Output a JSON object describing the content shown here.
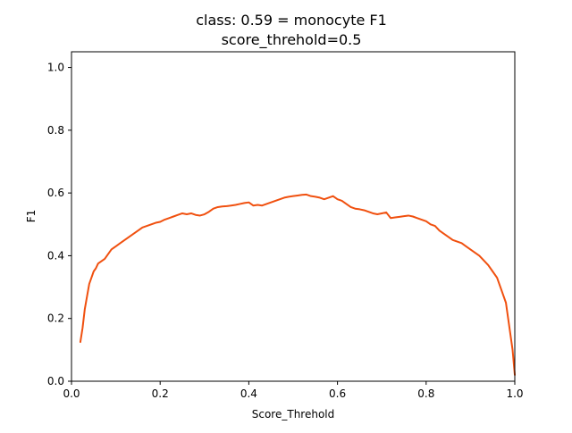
{
  "chart_data": {
    "type": "line",
    "title": "class: 0.59 = monocyte F1",
    "subtitle": "score_threhold=0.5",
    "xlabel": "Score_Threhold",
    "ylabel": "F1",
    "xlim": [
      0.0,
      1.0
    ],
    "ylim": [
      0.0,
      1.05
    ],
    "x_ticks": [
      0.0,
      0.2,
      0.4,
      0.6,
      0.8,
      1.0
    ],
    "x_tick_labels": [
      "0.0",
      "0.2",
      "0.4",
      "0.6",
      "0.8",
      "1.0"
    ],
    "y_ticks": [
      0.0,
      0.2,
      0.4,
      0.6,
      0.8,
      1.0
    ],
    "y_tick_labels": [
      "0.0",
      "0.2",
      "0.4",
      "0.6",
      "0.8",
      "1.0"
    ],
    "grid": false,
    "series": [
      {
        "color": "#f0500f",
        "x": [
          0.02,
          0.025,
          0.03,
          0.035,
          0.04,
          0.045,
          0.05,
          0.055,
          0.06,
          0.065,
          0.07,
          0.075,
          0.08,
          0.085,
          0.09,
          0.1,
          0.11,
          0.12,
          0.13,
          0.14,
          0.15,
          0.16,
          0.17,
          0.18,
          0.19,
          0.2,
          0.21,
          0.22,
          0.23,
          0.24,
          0.25,
          0.26,
          0.27,
          0.28,
          0.29,
          0.3,
          0.31,
          0.32,
          0.33,
          0.34,
          0.35,
          0.36,
          0.37,
          0.38,
          0.39,
          0.4,
          0.41,
          0.42,
          0.43,
          0.44,
          0.45,
          0.46,
          0.47,
          0.48,
          0.49,
          0.5,
          0.51,
          0.52,
          0.53,
          0.54,
          0.55,
          0.56,
          0.57,
          0.58,
          0.59,
          0.6,
          0.61,
          0.62,
          0.63,
          0.64,
          0.65,
          0.66,
          0.67,
          0.68,
          0.69,
          0.7,
          0.71,
          0.72,
          0.73,
          0.74,
          0.75,
          0.76,
          0.77,
          0.78,
          0.79,
          0.8,
          0.81,
          0.82,
          0.83,
          0.84,
          0.85,
          0.86,
          0.87,
          0.88,
          0.89,
          0.9,
          0.91,
          0.92,
          0.93,
          0.94,
          0.95,
          0.96,
          0.97,
          0.98,
          0.985,
          0.99,
          0.995,
          1.0
        ],
        "y": [
          0.125,
          0.17,
          0.23,
          0.27,
          0.31,
          0.33,
          0.35,
          0.36,
          0.375,
          0.38,
          0.385,
          0.39,
          0.4,
          0.41,
          0.42,
          0.43,
          0.44,
          0.45,
          0.46,
          0.47,
          0.48,
          0.49,
          0.495,
          0.5,
          0.505,
          0.508,
          0.515,
          0.52,
          0.525,
          0.53,
          0.535,
          0.532,
          0.535,
          0.53,
          0.528,
          0.532,
          0.54,
          0.55,
          0.555,
          0.557,
          0.558,
          0.56,
          0.562,
          0.565,
          0.568,
          0.57,
          0.56,
          0.562,
          0.56,
          0.565,
          0.57,
          0.575,
          0.58,
          0.585,
          0.588,
          0.59,
          0.592,
          0.594,
          0.595,
          0.59,
          0.588,
          0.585,
          0.58,
          0.585,
          0.59,
          0.58,
          0.575,
          0.565,
          0.555,
          0.55,
          0.548,
          0.545,
          0.54,
          0.535,
          0.532,
          0.535,
          0.538,
          0.52,
          0.522,
          0.524,
          0.526,
          0.528,
          0.525,
          0.52,
          0.515,
          0.51,
          0.5,
          0.495,
          0.48,
          0.47,
          0.46,
          0.45,
          0.445,
          0.44,
          0.43,
          0.42,
          0.41,
          0.4,
          0.385,
          0.37,
          0.35,
          0.33,
          0.29,
          0.25,
          0.2,
          0.15,
          0.1,
          0.02
        ]
      }
    ]
  }
}
